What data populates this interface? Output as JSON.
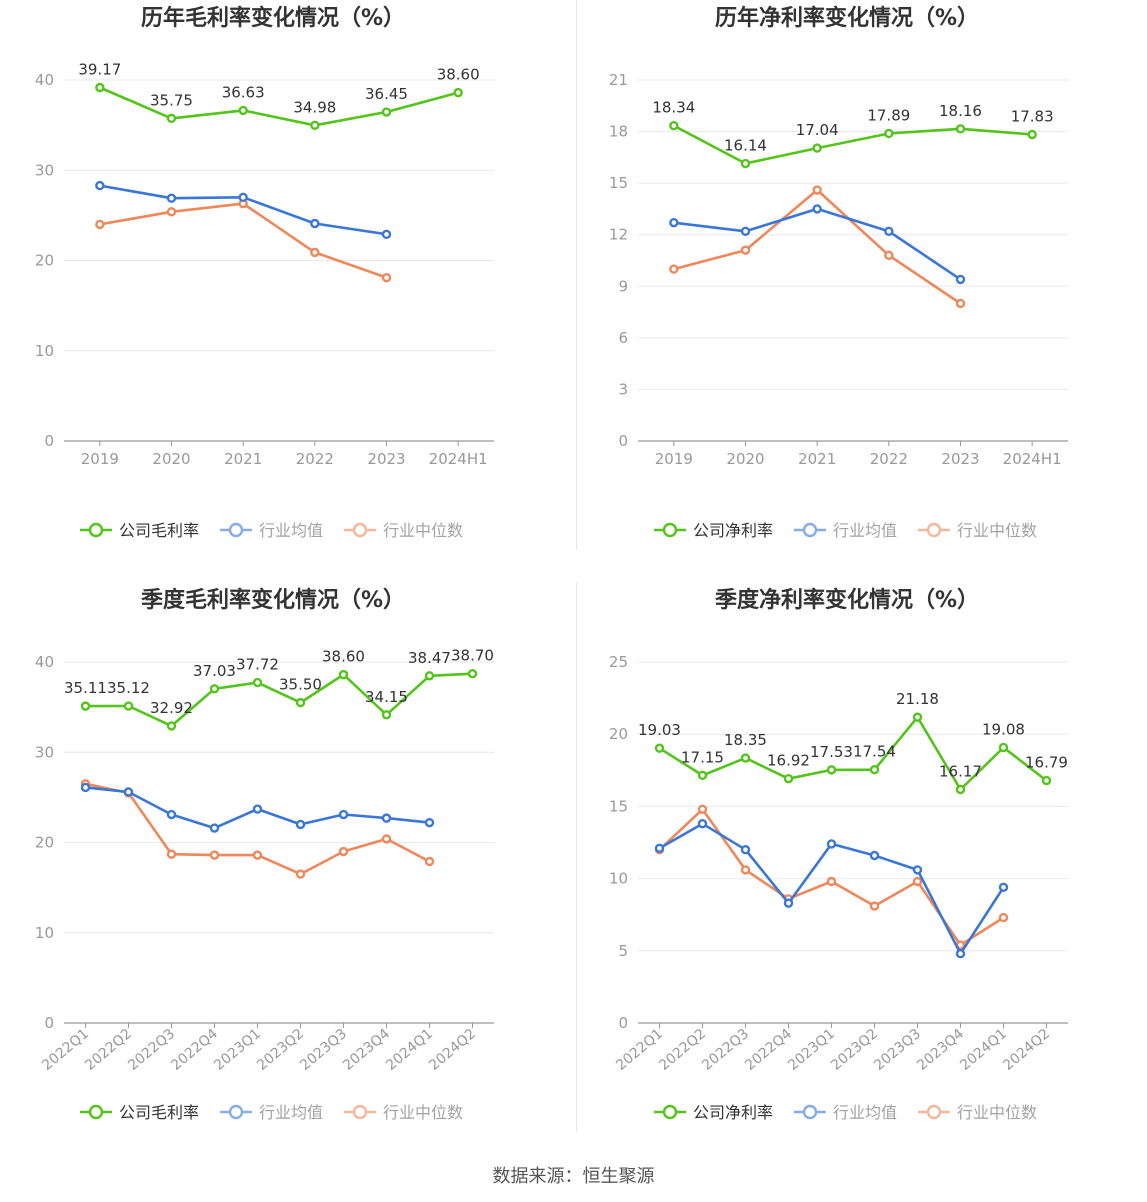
{
  "colors": {
    "company": "#52c41a",
    "industry_avg": "#3a76d8",
    "industry_median": "#f0875a",
    "axis": "#999999",
    "grid": "#e6e9f0",
    "label": "#333333",
    "title": "#333333"
  },
  "legend_labels": {
    "industry_avg": "行业均值",
    "industry_median": "行业中位数"
  },
  "source": "数据来源：恒生聚源",
  "chart_data": [
    {
      "type": "line",
      "title": "历年毛利率变化情况（%）",
      "categories": [
        "2019",
        "2020",
        "2021",
        "2022",
        "2023",
        "2024H1"
      ],
      "ylim": [
        0,
        40
      ],
      "yticks": [
        0,
        10,
        20,
        30,
        40
      ],
      "rotate_x_labels": false,
      "series": [
        {
          "key": "company",
          "name": "公司毛利率",
          "values": [
            39.17,
            35.75,
            36.63,
            34.98,
            36.45,
            38.6
          ],
          "labels": [
            "39.17",
            "35.75",
            "36.63",
            "34.98",
            "36.45",
            "38.60"
          ]
        },
        {
          "key": "industry_avg",
          "name": "行业均值",
          "values": [
            28.3,
            26.9,
            27.0,
            24.1,
            22.9,
            null
          ]
        },
        {
          "key": "industry_median",
          "name": "行业中位数",
          "values": [
            24.0,
            25.4,
            26.3,
            20.9,
            18.1,
            null
          ]
        }
      ]
    },
    {
      "type": "line",
      "title": "历年净利率变化情况（%）",
      "categories": [
        "2019",
        "2020",
        "2021",
        "2022",
        "2023",
        "2024H1"
      ],
      "ylim": [
        0,
        21
      ],
      "yticks": [
        0,
        3,
        6,
        9,
        12,
        15,
        18,
        21
      ],
      "rotate_x_labels": false,
      "series": [
        {
          "key": "company",
          "name": "公司净利率",
          "values": [
            18.34,
            16.14,
            17.04,
            17.89,
            18.16,
            17.83
          ],
          "labels": [
            "18.34",
            "16.14",
            "17.04",
            "17.89",
            "18.16",
            "17.83"
          ]
        },
        {
          "key": "industry_avg",
          "name": "行业均值",
          "values": [
            12.7,
            12.2,
            13.5,
            12.2,
            9.4,
            null
          ]
        },
        {
          "key": "industry_median",
          "name": "行业中位数",
          "values": [
            10.0,
            11.1,
            14.6,
            10.8,
            8.0,
            null
          ]
        }
      ]
    },
    {
      "type": "line",
      "title": "季度毛利率变化情况（%）",
      "categories": [
        "2022Q1",
        "2022Q2",
        "2022Q3",
        "2022Q4",
        "2023Q1",
        "2023Q2",
        "2023Q3",
        "2023Q4",
        "2024Q1",
        "2024Q2"
      ],
      "ylim": [
        0,
        40
      ],
      "yticks": [
        0,
        10,
        20,
        30,
        40
      ],
      "rotate_x_labels": true,
      "series": [
        {
          "key": "company",
          "name": "公司毛利率",
          "values": [
            35.11,
            35.12,
            32.92,
            37.03,
            37.72,
            35.5,
            38.6,
            34.15,
            38.47,
            38.7
          ],
          "labels": [
            "35.11",
            "35.12",
            "32.92",
            "37.03",
            "37.72",
            "35.50",
            "38.60",
            "34.15",
            "38.47",
            "38.70"
          ]
        },
        {
          "key": "industry_avg",
          "name": "行业均值",
          "values": [
            26.1,
            25.6,
            23.1,
            21.6,
            23.7,
            22.0,
            23.1,
            22.7,
            22.2,
            null
          ]
        },
        {
          "key": "industry_median",
          "name": "行业中位数",
          "values": [
            26.5,
            25.5,
            18.7,
            18.6,
            18.6,
            16.5,
            19.0,
            20.4,
            17.9,
            null
          ]
        }
      ]
    },
    {
      "type": "line",
      "title": "季度净利率变化情况（%）",
      "categories": [
        "2022Q1",
        "2022Q2",
        "2022Q3",
        "2022Q4",
        "2023Q1",
        "2023Q2",
        "2023Q3",
        "2023Q4",
        "2024Q1",
        "2024Q2"
      ],
      "ylim": [
        0,
        25
      ],
      "yticks": [
        0,
        5,
        10,
        15,
        20,
        25
      ],
      "rotate_x_labels": true,
      "series": [
        {
          "key": "company",
          "name": "公司净利率",
          "values": [
            19.03,
            17.15,
            18.35,
            16.92,
            17.53,
            17.54,
            21.18,
            16.17,
            19.08,
            16.79
          ],
          "labels": [
            "19.03",
            "17.15",
            "18.35",
            "16.92",
            "17.53",
            "17.54",
            "21.18",
            "16.17",
            "19.08",
            "16.79"
          ]
        },
        {
          "key": "industry_avg",
          "name": "行业均值",
          "values": [
            12.1,
            13.8,
            12.0,
            8.3,
            12.4,
            11.6,
            10.6,
            4.8,
            9.4,
            null
          ]
        },
        {
          "key": "industry_median",
          "name": "行业中位数",
          "values": [
            12.0,
            14.8,
            10.6,
            8.6,
            9.8,
            8.1,
            9.8,
            5.4,
            7.3,
            null
          ]
        }
      ]
    }
  ]
}
